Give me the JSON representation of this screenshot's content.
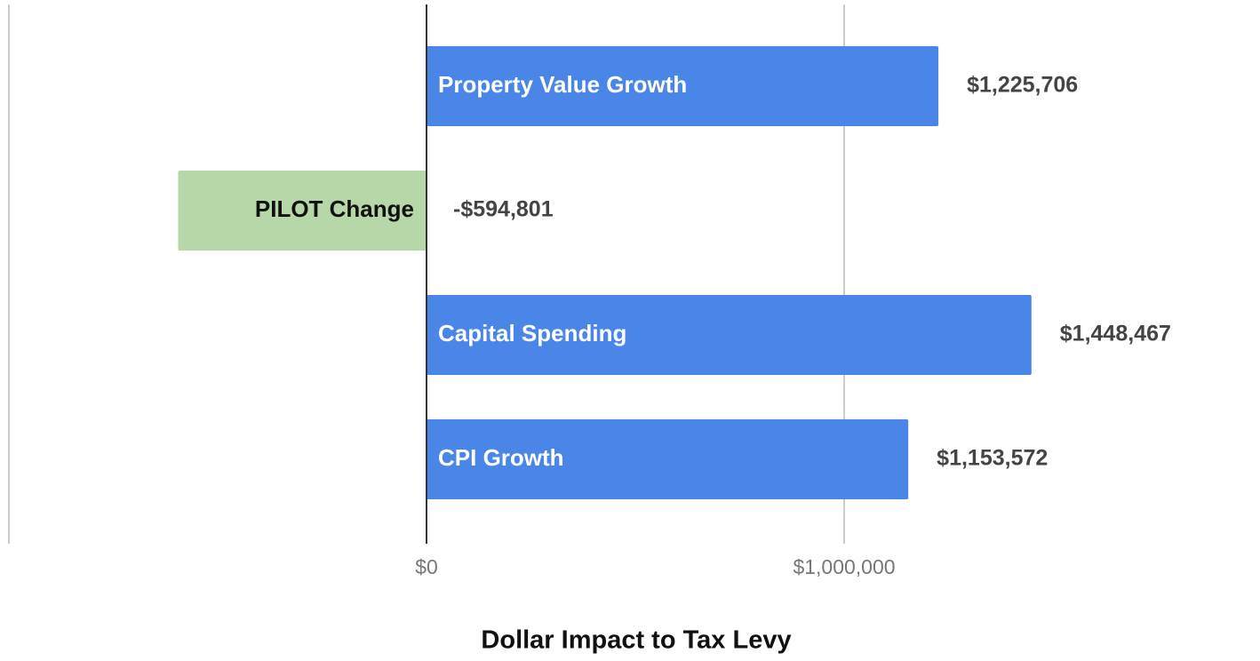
{
  "chart_data": {
    "type": "hbar",
    "x_label": "Dollar Impact to Tax Levy",
    "categories": [
      "Property Value Growth",
      "PILOT Change",
      "Capital Spending",
      "CPI Growth"
    ],
    "values": [
      1225706,
      -594801,
      1448467,
      1153572
    ],
    "value_labels": [
      "$1,225,706",
      "-$594,801",
      "$1,448,467",
      "$1,153,572"
    ],
    "colors": [
      "#4a86e8",
      "#b6d7a8",
      "#4a86e8",
      "#4a86e8"
    ],
    "xlim": [
      -1000000,
      2000000
    ],
    "xticks": [
      {
        "value": 0,
        "label": "$0"
      },
      {
        "value": 1000000,
        "label": "$1,000,000"
      }
    ],
    "grid": true
  }
}
